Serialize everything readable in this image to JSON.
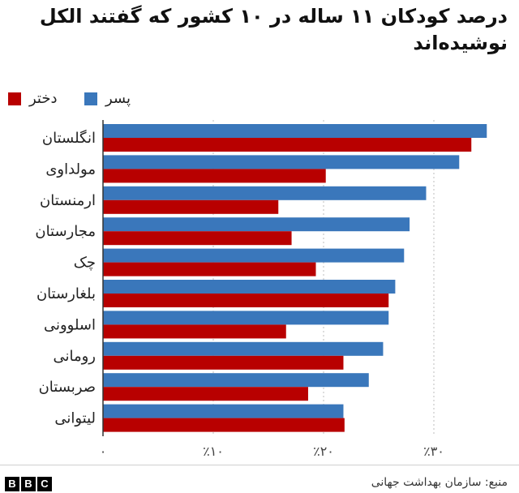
{
  "chart_data": {
    "type": "bar",
    "orientation": "horizontal",
    "title": "درصد کودکان ۱۱ ساله در ۱۰ کشور که گفتند الکل نوشیده‌اند",
    "categories": [
      "انگلستان",
      "مولداوی",
      "ارمنستان",
      "مجارستان",
      "چک",
      "بلغارستان",
      "اسلوونی",
      "رومانی",
      "صربستان",
      "لیتوانی"
    ],
    "series": [
      {
        "name": "پسر",
        "color": "#3a77bb",
        "values": [
          34.8,
          32.3,
          29.3,
          27.8,
          27.3,
          26.5,
          25.9,
          25.4,
          24.1,
          21.8
        ]
      },
      {
        "name": "دختر",
        "color": "#b80000",
        "values": [
          33.4,
          20.2,
          15.9,
          17.1,
          19.3,
          25.9,
          16.6,
          21.8,
          18.6,
          21.9
        ]
      }
    ],
    "xlim": [
      0,
      35
    ],
    "xticks": [
      0,
      10,
      20,
      30
    ],
    "xtick_labels": [
      "۰",
      "٪۱۰",
      "٪۲۰",
      "٪۳۰"
    ],
    "grid": true,
    "legend_position": "top-left"
  },
  "source": "منبع: سازمان بهداشت جهانی",
  "brand": "BBC"
}
